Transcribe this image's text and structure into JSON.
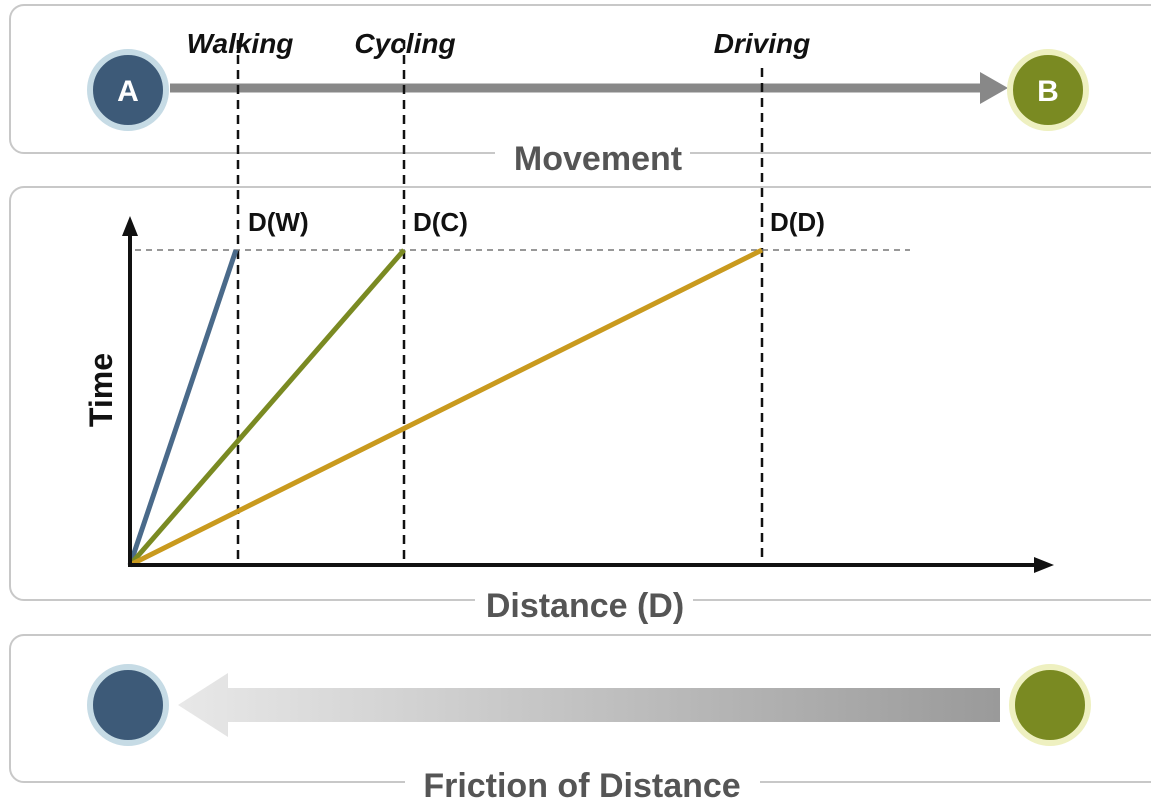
{
  "movement": {
    "title": "Movement",
    "start": "A",
    "end": "B",
    "modes": [
      "Walking",
      "Cycling",
      "Driving"
    ]
  },
  "graph": {
    "title": "Distance (D)",
    "y_axis": "Time",
    "points": [
      "D(W)",
      "D(C)",
      "D(D)"
    ]
  },
  "friction": {
    "title": "Friction of Distance"
  }
}
